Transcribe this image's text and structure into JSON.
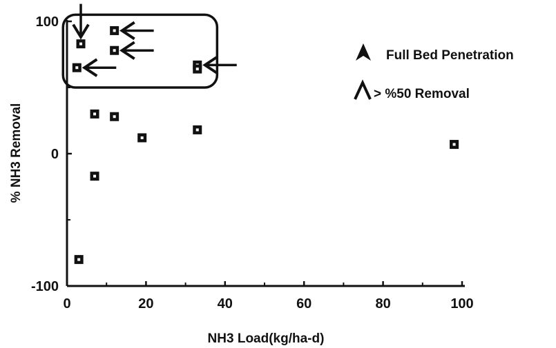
{
  "chart_data": {
    "type": "scatter",
    "title": "",
    "xlabel": "NH3 Load(kg/ha-d)",
    "ylabel": "% NH3 Removal",
    "xlim": [
      0,
      100
    ],
    "ylim": [
      -100,
      100
    ],
    "x_ticks": [
      "0",
      "20",
      "40",
      "60",
      "80",
      "100"
    ],
    "y_ticks": [
      "100",
      "0",
      "-100"
    ],
    "grid": false,
    "legend_position": "right",
    "legend": [
      {
        "label": "Full Bed Penetration",
        "symbol": "filled-arrowhead"
      },
      {
        "label": "> %50 Removal",
        "symbol": "open-arrowhead"
      }
    ],
    "points": [
      {
        "x": 3.5,
        "y": 83,
        "arrow": "down"
      },
      {
        "x": 2.5,
        "y": 65,
        "arrow": "left"
      },
      {
        "x": 12,
        "y": 93,
        "arrow": "left"
      },
      {
        "x": 12,
        "y": 78,
        "arrow": "left"
      },
      {
        "x": 33,
        "y": 67,
        "arrow": "left"
      },
      {
        "x": 33,
        "y": 64
      },
      {
        "x": 7,
        "y": 30
      },
      {
        "x": 12,
        "y": 28
      },
      {
        "x": 19,
        "y": 12
      },
      {
        "x": 33,
        "y": 18
      },
      {
        "x": 7,
        "y": -17
      },
      {
        "x": 3,
        "y": -80
      },
      {
        "x": 98,
        "y": 7
      }
    ],
    "highlight_box": {
      "x_range": [
        -1,
        38
      ],
      "y_range": [
        50,
        105
      ]
    }
  }
}
